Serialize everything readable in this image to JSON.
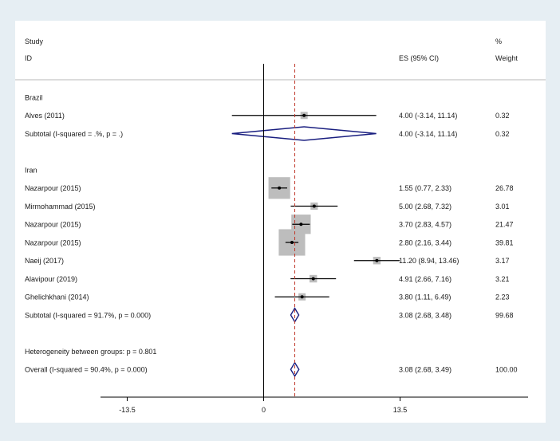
{
  "chart_data": {
    "type": "forest",
    "header": {
      "study_line1": "Study",
      "study_line2": "ID",
      "es_label": "ES (95% CI)",
      "weight_line1": "%",
      "weight_line2": "Weight"
    },
    "rows": [
      {
        "kind": "group",
        "label": "Brazil"
      },
      {
        "kind": "study",
        "label": "Alves (2011)",
        "es": 4.0,
        "lo": -3.14,
        "hi": 11.14,
        "weight": 0.32,
        "ci_text": "4.00 (-3.14, 11.14)",
        "weight_text": "0.32"
      },
      {
        "kind": "subtotal",
        "label": "Subtotal  (I-squared = .%, p = .)",
        "es": 4.0,
        "lo": -3.14,
        "hi": 11.14,
        "ci_text": "4.00 (-3.14, 11.14)",
        "weight_text": "0.32"
      },
      {
        "kind": "blank"
      },
      {
        "kind": "group",
        "label": "Iran"
      },
      {
        "kind": "study",
        "label": "Nazarpour (2015)",
        "es": 1.55,
        "lo": 0.77,
        "hi": 2.33,
        "weight": 26.78,
        "ci_text": "1.55 (0.77, 2.33)",
        "weight_text": "26.78"
      },
      {
        "kind": "study",
        "label": "Mirmohammad (2015)",
        "es": 5.0,
        "lo": 2.68,
        "hi": 7.32,
        "weight": 3.01,
        "ci_text": "5.00 (2.68, 7.32)",
        "weight_text": "3.01"
      },
      {
        "kind": "study",
        "label": "Nazarpour (2015)",
        "es": 3.7,
        "lo": 2.83,
        "hi": 4.57,
        "weight": 21.47,
        "ci_text": "3.70 (2.83, 4.57)",
        "weight_text": "21.47"
      },
      {
        "kind": "study",
        "label": "Nazarpour (2015)",
        "es": 2.8,
        "lo": 2.16,
        "hi": 3.44,
        "weight": 39.81,
        "ci_text": "2.80 (2.16, 3.44)",
        "weight_text": "39.81"
      },
      {
        "kind": "study",
        "label": "Naeij (2017)",
        "es": 11.2,
        "lo": 8.94,
        "hi": 13.46,
        "weight": 3.17,
        "ci_text": "11.20 (8.94, 13.46)",
        "weight_text": "3.17"
      },
      {
        "kind": "study",
        "label": "Alavipour (2019)",
        "es": 4.91,
        "lo": 2.66,
        "hi": 7.16,
        "weight": 3.21,
        "ci_text": "4.91 (2.66, 7.16)",
        "weight_text": "3.21"
      },
      {
        "kind": "study",
        "label": "Ghelichkhani (2014)",
        "es": 3.8,
        "lo": 1.11,
        "hi": 6.49,
        "weight": 2.23,
        "ci_text": "3.80 (1.11, 6.49)",
        "weight_text": "2.23"
      },
      {
        "kind": "subtotal",
        "label": "Subtotal  (I-squared = 91.7%, p = 0.000)",
        "es": 3.08,
        "lo": 2.68,
        "hi": 3.48,
        "ci_text": "3.08 (2.68, 3.48)",
        "weight_text": "99.68"
      },
      {
        "kind": "blank"
      },
      {
        "kind": "note",
        "label": "Heterogeneity between groups: p = 0.801"
      },
      {
        "kind": "overall",
        "label": "Overall  (I-squared = 90.4%, p = 0.000)",
        "es": 3.08,
        "lo": 2.68,
        "hi": 3.49,
        "ci_text": "3.08 (2.68, 3.49)",
        "weight_text": "100.00"
      }
    ],
    "overall_es": 3.08,
    "null_value": 0,
    "x_ticks": [
      -13.5,
      0,
      13.5
    ],
    "x_tick_labels": [
      "-13.5",
      "0",
      "13.5"
    ],
    "colors": {
      "background": "#e6eef3",
      "panel": "#ffffff",
      "box": "#bdbdbd",
      "diamond": "#1a1f80",
      "overall_line": "#c0392b",
      "line": "#000000"
    }
  }
}
